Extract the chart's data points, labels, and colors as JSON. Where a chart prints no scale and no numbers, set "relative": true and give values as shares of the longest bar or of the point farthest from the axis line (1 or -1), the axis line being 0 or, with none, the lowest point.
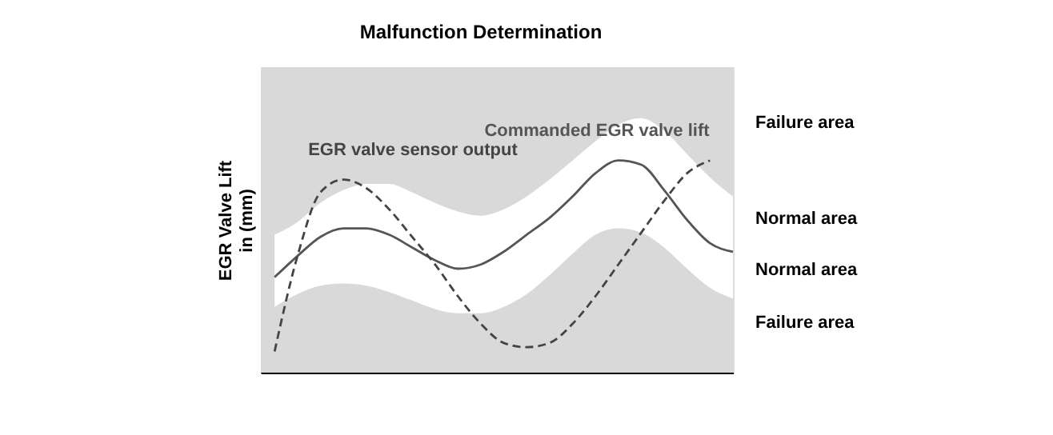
{
  "chart_data": {
    "type": "line",
    "title": "Malfunction Determination",
    "ylabel": "EGR Valve Lift\nin (mm)",
    "relative": true,
    "categories": [
      null,
      null,
      null,
      null,
      null,
      null,
      null,
      null,
      null,
      null,
      null,
      null,
      null,
      null,
      null,
      null,
      null,
      null,
      null,
      null,
      null
    ],
    "series": [
      {
        "name": "Commanded EGR valve lift",
        "color": "#555555",
        "line_style": "solid",
        "values": [
          0.45,
          0.55,
          0.64,
          0.68,
          0.68,
          0.65,
          0.59,
          0.53,
          0.49,
          0.51,
          0.57,
          0.65,
          0.73,
          0.83,
          0.94,
          1,
          0.98,
          0.86,
          0.72,
          0.61,
          0.57
        ],
        "lower": [
          0.31,
          0.37,
          0.41,
          0.42,
          0.41,
          0.38,
          0.34,
          0.3,
          0.28,
          0.28,
          0.31,
          0.37,
          0.46,
          0.56,
          0.65,
          0.68,
          0.66,
          0.59,
          0.49,
          0.4,
          0.35
        ],
        "upper": [
          0.65,
          0.71,
          0.8,
          0.86,
          0.89,
          0.89,
          0.85,
          0.8,
          0.76,
          0.74,
          0.77,
          0.83,
          0.91,
          1,
          1.09,
          1.17,
          1.2,
          1.14,
          1.03,
          0.92,
          0.83
        ]
      },
      {
        "name": "EGR valve sensor output",
        "color": "#444444",
        "line_style": "dashed",
        "values": [
          0.1,
          0.55,
          0.85,
          0.91,
          0.87,
          0.77,
          0.64,
          0.51,
          0.36,
          0.23,
          0.14,
          0.12,
          0.14,
          0.23,
          0.36,
          0.51,
          0.66,
          0.81,
          0.94,
          1,
          null
        ]
      }
    ],
    "annotations": [
      "Failure area",
      "Normal area",
      "Normal area",
      "Failure area"
    ]
  }
}
